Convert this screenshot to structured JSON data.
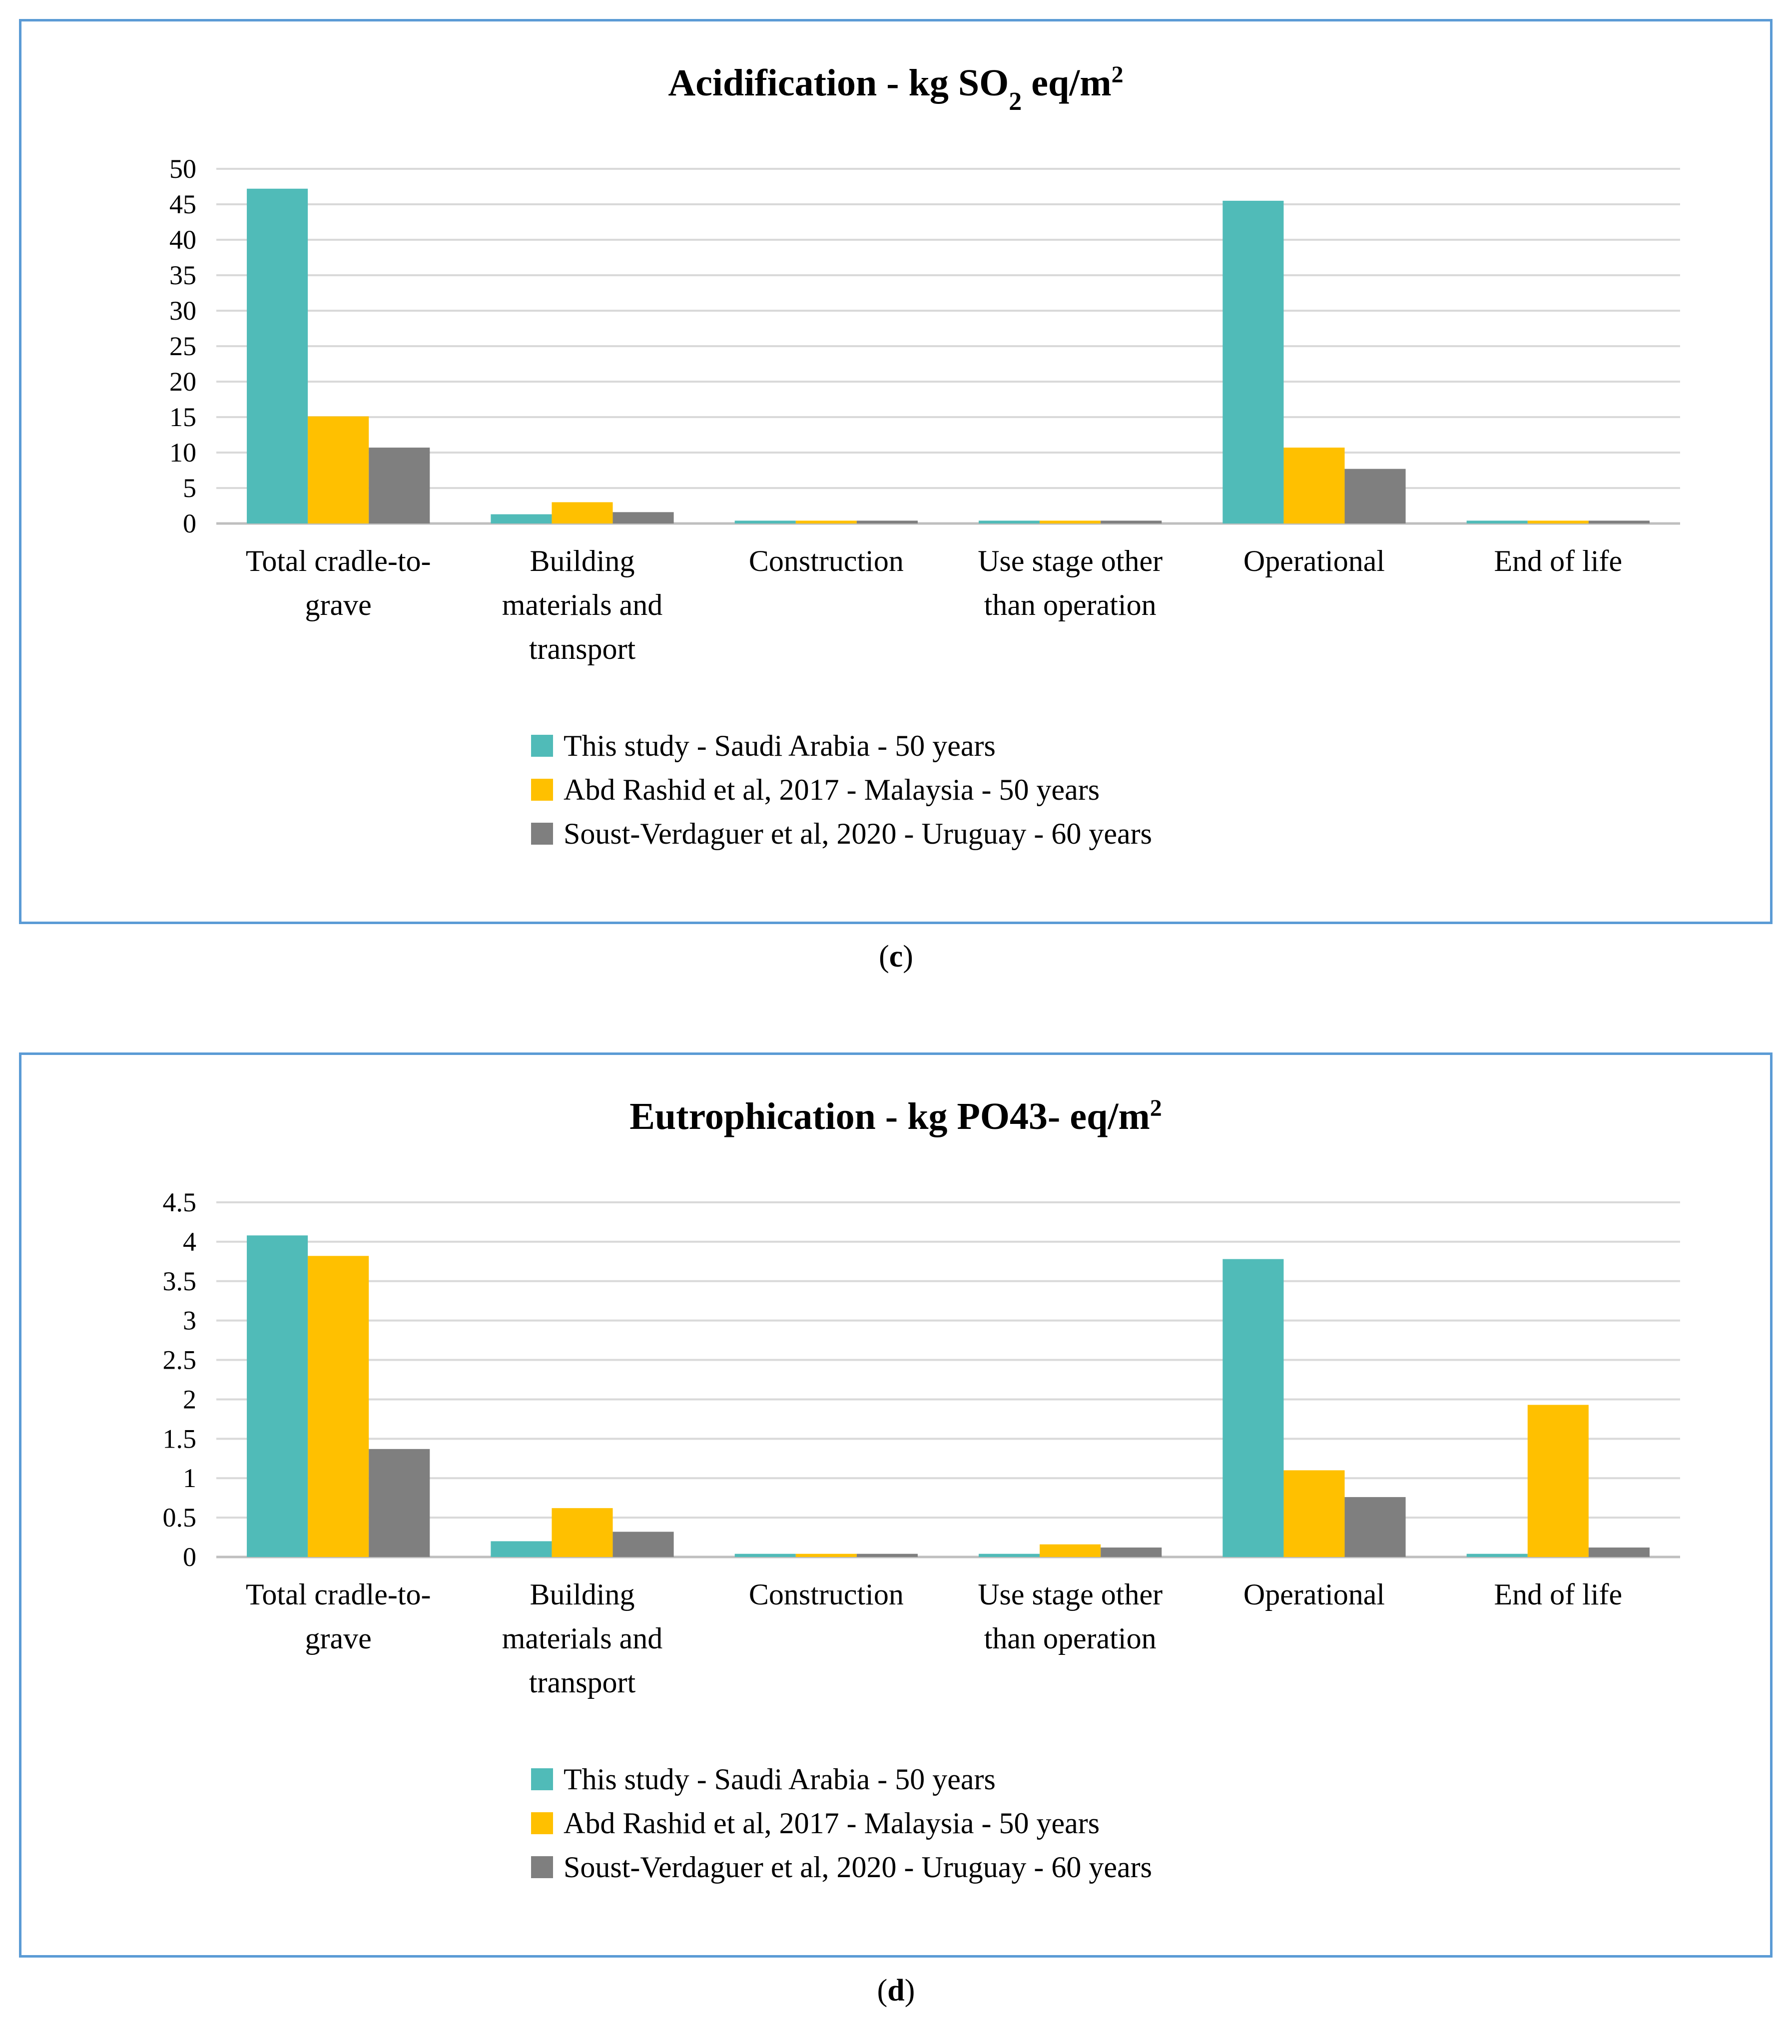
{
  "figure": {
    "colors": {
      "saudi": "#50bbb8",
      "malaysia": "#ffc000",
      "uruguay": "#7f7f7f",
      "grid": "#d9d9d9",
      "border": "#5b9bd5"
    }
  },
  "chart_data": [
    {
      "type": "bar",
      "panel": "c",
      "caption_letter": "c",
      "title_prefix": "Acidification - kg SO",
      "title_sub": "2",
      "title_mid": " eq/m",
      "title_sup": "2",
      "categories": [
        [
          "Total cradle-to-",
          "grave"
        ],
        [
          "Building",
          "materials and",
          "transport"
        ],
        [
          "Construction"
        ],
        [
          "Use stage other",
          "than operation"
        ],
        [
          "Operational"
        ],
        [
          "End of life"
        ]
      ],
      "series": [
        {
          "name": "This study - Saudi Arabia - 50 years",
          "color": "#50bbb8",
          "values": [
            47.2,
            1.3,
            0.4,
            0.4,
            45.5,
            0.4
          ]
        },
        {
          "name": "Abd Rashid et al, 2017 - Malaysia - 50 years",
          "color": "#ffc000",
          "values": [
            15.1,
            3.0,
            0.4,
            0.4,
            10.7,
            0.4
          ]
        },
        {
          "name": "Soust-Verdaguer et al, 2020 - Uruguay - 60 years",
          "color": "#7f7f7f",
          "values": [
            10.7,
            1.6,
            0.4,
            0.4,
            7.7,
            0.4
          ]
        }
      ],
      "ylim": [
        0,
        50
      ],
      "yticks": [
        0,
        5,
        10,
        15,
        20,
        25,
        30,
        35,
        40,
        45,
        50
      ],
      "ytick_labels": [
        "0",
        "5",
        "10",
        "15",
        "20",
        "25",
        "30",
        "35",
        "40",
        "45",
        "50"
      ],
      "xlabel": "",
      "ylabel": "",
      "legend": "bottom",
      "grid": true
    },
    {
      "type": "bar",
      "panel": "d",
      "caption_letter": "d",
      "title_prefix": "Eutrophication - kg PO43- eq/m",
      "title_sub": "",
      "title_mid": "",
      "title_sup": "2",
      "categories": [
        [
          "Total cradle-to-",
          "grave"
        ],
        [
          "Building",
          "materials and",
          "transport"
        ],
        [
          "Construction"
        ],
        [
          "Use stage other",
          "than operation"
        ],
        [
          "Operational"
        ],
        [
          "End of life"
        ]
      ],
      "series": [
        {
          "name": "This study - Saudi Arabia - 50 years",
          "color": "#50bbb8",
          "values": [
            4.08,
            0.2,
            0.04,
            0.04,
            3.78,
            0.04
          ]
        },
        {
          "name": "Abd Rashid et al, 2017 - Malaysia - 50 years",
          "color": "#ffc000",
          "values": [
            3.82,
            0.62,
            0.04,
            0.16,
            1.1,
            1.93
          ]
        },
        {
          "name": "Soust-Verdaguer et al, 2020 - Uruguay - 60 years",
          "color": "#7f7f7f",
          "values": [
            1.37,
            0.32,
            0.04,
            0.12,
            0.76,
            0.12
          ]
        }
      ],
      "ylim": [
        0,
        4.5
      ],
      "yticks": [
        0,
        0.5,
        1,
        1.5,
        2,
        2.5,
        3,
        3.5,
        4,
        4.5
      ],
      "ytick_labels": [
        "0",
        "0.5",
        "1",
        "1.5",
        "2",
        "2.5",
        "3",
        "3.5",
        "4",
        "4.5"
      ],
      "xlabel": "",
      "ylabel": "",
      "legend": "bottom",
      "grid": true
    }
  ]
}
